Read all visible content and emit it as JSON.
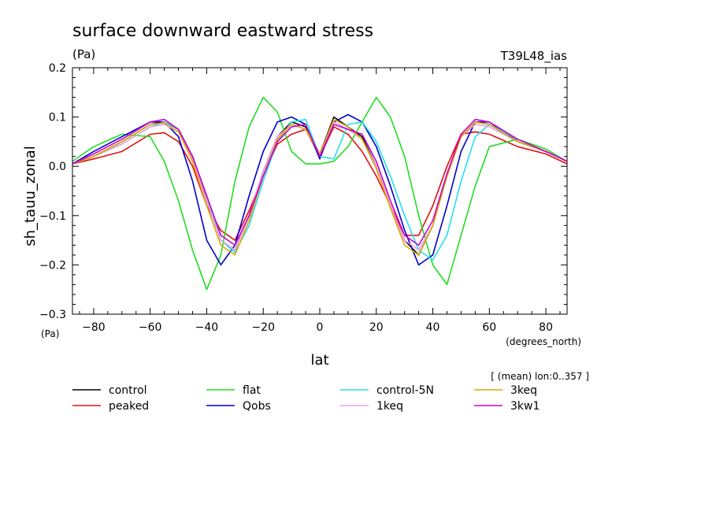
{
  "chart_data": {
    "type": "line",
    "title": "surface downward eastward stress",
    "units_left": "(Pa)",
    "run_id": "T39L48_ias",
    "ylabel": "sh_tauu_zonal",
    "ylabel_units": "(Pa)",
    "xlabel": "lat",
    "xlabel_units": "(degrees_north)",
    "averaging_note": "[ (mean) lon:0..357 ]",
    "xlim": [
      -87.5,
      87.5
    ],
    "ylim": [
      -0.3,
      0.2
    ],
    "xticks": [
      -80,
      -60,
      -40,
      -20,
      0,
      20,
      40,
      60,
      80
    ],
    "xtick_labels": [
      "−80",
      "−60",
      "−40",
      "−20",
      "0",
      "20",
      "40",
      "60",
      "80"
    ],
    "yticks": [
      -0.3,
      -0.2,
      -0.1,
      0.0,
      0.1,
      0.2
    ],
    "ytick_labels": [
      "−0.3",
      "−0.2",
      "−0.1",
      "0.0",
      "0.1",
      "0.2"
    ],
    "grid": false,
    "legend_position": "bottom",
    "x": [
      -87.5,
      -80,
      -70,
      -60,
      -55,
      -50,
      -45,
      -40,
      -35,
      -30,
      -25,
      -20,
      -15,
      -10,
      -5,
      0,
      5,
      10,
      15,
      20,
      25,
      30,
      35,
      40,
      45,
      50,
      55,
      60,
      70,
      80,
      87.5
    ],
    "series": [
      {
        "name": "control",
        "color": "#000000",
        "values": [
          0.005,
          0.02,
          0.05,
          0.085,
          0.09,
          0.075,
          0.02,
          -0.07,
          -0.15,
          -0.17,
          -0.1,
          -0.01,
          0.06,
          0.09,
          0.08,
          0.025,
          0.1,
          0.08,
          0.06,
          0.0,
          -0.08,
          -0.15,
          -0.18,
          -0.12,
          -0.02,
          0.06,
          0.09,
          0.085,
          0.05,
          0.03,
          0.01
        ]
      },
      {
        "name": "peaked",
        "color": "#e01010",
        "values": [
          0.005,
          0.015,
          0.03,
          0.065,
          0.068,
          0.05,
          0.0,
          -0.08,
          -0.13,
          -0.15,
          -0.09,
          -0.02,
          0.045,
          0.065,
          0.075,
          0.02,
          0.08,
          0.065,
          0.03,
          -0.02,
          -0.08,
          -0.14,
          -0.14,
          -0.08,
          0.0,
          0.065,
          0.07,
          0.065,
          0.04,
          0.025,
          0.005
        ]
      },
      {
        "name": "flat",
        "color": "#22dd22",
        "values": [
          0.01,
          0.04,
          0.065,
          0.06,
          0.01,
          -0.07,
          -0.17,
          -0.25,
          -0.18,
          -0.03,
          0.08,
          0.14,
          0.11,
          0.03,
          0.005,
          0.005,
          0.01,
          0.04,
          0.09,
          0.14,
          0.1,
          0.02,
          -0.1,
          -0.2,
          -0.24,
          -0.14,
          -0.04,
          0.04,
          0.055,
          0.035,
          0.01
        ]
      },
      {
        "name": "Qobs",
        "color": "#0000cc",
        "values": [
          0.005,
          0.03,
          0.06,
          0.09,
          0.09,
          0.06,
          -0.03,
          -0.15,
          -0.2,
          -0.16,
          -0.06,
          0.03,
          0.09,
          0.1,
          0.085,
          0.015,
          0.09,
          0.105,
          0.09,
          0.04,
          -0.04,
          -0.13,
          -0.2,
          -0.18,
          -0.08,
          0.03,
          0.09,
          0.09,
          0.05,
          0.03,
          0.01
        ]
      },
      {
        "name": "control-5N",
        "color": "#22e0ee",
        "values": [
          0.005,
          0.02,
          0.045,
          0.08,
          0.09,
          0.075,
          0.02,
          -0.06,
          -0.15,
          -0.175,
          -0.12,
          -0.03,
          0.05,
          0.09,
          0.095,
          0.02,
          0.015,
          0.085,
          0.09,
          0.05,
          -0.02,
          -0.1,
          -0.17,
          -0.19,
          -0.14,
          -0.03,
          0.06,
          0.085,
          0.055,
          0.03,
          0.01
        ]
      },
      {
        "name": "1keq",
        "color": "#e8a0e8",
        "values": [
          0.005,
          0.02,
          0.045,
          0.08,
          0.085,
          0.07,
          0.015,
          -0.07,
          -0.15,
          -0.17,
          -0.1,
          -0.01,
          0.06,
          0.085,
          0.075,
          0.025,
          0.09,
          0.075,
          0.055,
          0.0,
          -0.08,
          -0.15,
          -0.17,
          -0.12,
          -0.02,
          0.06,
          0.085,
          0.08,
          0.05,
          0.03,
          0.01
        ]
      },
      {
        "name": "3keq",
        "color": "#e0a800",
        "values": [
          0.005,
          0.02,
          0.05,
          0.085,
          0.088,
          0.07,
          0.01,
          -0.08,
          -0.16,
          -0.18,
          -0.11,
          -0.02,
          0.055,
          0.085,
          0.075,
          0.025,
          0.095,
          0.08,
          0.055,
          -0.005,
          -0.085,
          -0.16,
          -0.18,
          -0.12,
          -0.02,
          0.06,
          0.09,
          0.085,
          0.05,
          0.03,
          0.01
        ]
      },
      {
        "name": "3kw1",
        "color": "#cc00cc",
        "values": [
          0.005,
          0.025,
          0.055,
          0.09,
          0.095,
          0.075,
          0.02,
          -0.06,
          -0.14,
          -0.16,
          -0.1,
          -0.02,
          0.05,
          0.08,
          0.085,
          0.02,
          0.085,
          0.075,
          0.065,
          0.01,
          -0.07,
          -0.14,
          -0.16,
          -0.11,
          -0.015,
          0.065,
          0.095,
          0.09,
          0.055,
          0.03,
          0.01
        ]
      }
    ],
    "legend_layout": [
      [
        "control",
        "flat",
        "control-5N",
        "3keq"
      ],
      [
        "peaked",
        "Qobs",
        "1keq",
        "3kw1"
      ]
    ]
  }
}
